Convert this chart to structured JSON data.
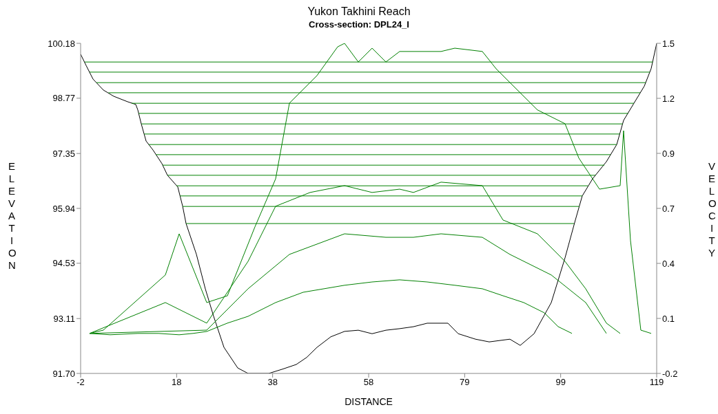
{
  "chart_data": {
    "type": "line",
    "title": "Yukon Takhini Reach",
    "subtitle": "Cross-section: DPL24_I",
    "xlabel": "DISTANCE",
    "ylabel": "ELEVATION",
    "y2label": "VELOCITY",
    "xlim": [
      -2,
      119
    ],
    "xticks": [
      -2,
      {
        "value": 18.17,
        "label": "18"
      },
      {
        "value": 38.33,
        "label": "38"
      },
      {
        "value": 58.5,
        "label": "58"
      },
      {
        "value": 78.67,
        "label": "79"
      },
      {
        "value": 98.83,
        "label": "99"
      },
      119
    ],
    "ylim": [
      91.7,
      100.18
    ],
    "yticks": [
      {
        "value": 91.7,
        "label": "91.70"
      },
      93.11,
      94.53,
      95.94,
      97.35,
      98.77,
      100.18
    ],
    "y2lim": [
      -0.2,
      1.5
    ],
    "y2ticks": [
      -0.2,
      {
        "value": 0.0833,
        "label": "0.1"
      },
      {
        "value": 0.3667,
        "label": "0.4"
      },
      {
        "value": 0.65,
        "label": "0.7"
      },
      {
        "value": 0.9333,
        "label": "0.9"
      },
      {
        "value": 1.2167,
        "label": "1.2"
      },
      1.5
    ],
    "marker": "none",
    "line_style": "solid",
    "series": [
      {
        "color": "#000000",
        "x": [
          -2,
          -0.84,
          0.61,
          2.78,
          4.95,
          7.85,
          9.58,
          10.01,
          10.74,
          11.75,
          13.2,
          15.08,
          16.24,
          18.41,
          19.42,
          20.15,
          22.32,
          24.2,
          25.93,
          28.11,
          31.0,
          33.17,
          37.51,
          40.41,
          43.3,
          45.47,
          47.65,
          50.54,
          53.44,
          56.33,
          59.22,
          62.12,
          65.01,
          67.91,
          70.8,
          75.15,
          77.32,
          80.94,
          83.83,
          88.17,
          90.34,
          93.24,
          96.86,
          99.75,
          101.92,
          103.37,
          105.54,
          108.44,
          110.61,
          112.05,
          114.22,
          116.4,
          117.84,
          119
        ],
        "values": [
          99.9,
          99.61,
          99.26,
          98.98,
          98.82,
          98.68,
          98.61,
          98.47,
          98.11,
          97.67,
          97.44,
          97.09,
          96.79,
          96.49,
          96.0,
          95.55,
          94.76,
          93.87,
          93.17,
          92.37,
          91.84,
          91.7,
          91.7,
          91.81,
          91.93,
          92.11,
          92.37,
          92.64,
          92.78,
          92.81,
          92.72,
          92.81,
          92.85,
          92.9,
          92.99,
          92.99,
          92.72,
          92.58,
          92.51,
          92.58,
          92.42,
          92.72,
          93.52,
          94.67,
          95.64,
          96.26,
          96.7,
          97.14,
          97.58,
          98.2,
          98.64,
          99.08,
          99.53,
          100.18
        ]
      },
      {
        "type": "line",
        "color": "#008000",
        "x": [
          -1.13,
          118.2
        ],
        "values": [
          99.7,
          99.7
        ]
      },
      {
        "type": "line",
        "color": "#008000",
        "x": [
          -0.12,
          117.55
        ],
        "values": [
          99.44,
          99.44
        ]
      },
      {
        "type": "line",
        "color": "#008000",
        "x": [
          1.33,
          116.69
        ],
        "values": [
          99.17,
          99.17
        ]
      },
      {
        "type": "line",
        "color": "#008000",
        "x": [
          3.86,
          115.53
        ],
        "values": [
          98.91,
          98.91
        ]
      },
      {
        "type": "line",
        "color": "#008000",
        "x": [
          8.71,
          114.22
        ],
        "values": [
          98.64,
          98.64
        ]
      },
      {
        "type": "line",
        "color": "#008000",
        "x": [
          10.16,
          113.0
        ],
        "values": [
          98.38,
          98.38
        ]
      },
      {
        "type": "line",
        "color": "#008000",
        "x": [
          10.74,
          111.85
        ],
        "values": [
          98.11,
          98.11
        ]
      },
      {
        "type": "line",
        "color": "#008000",
        "x": [
          11.34,
          111.23
        ],
        "values": [
          97.85,
          97.85
        ]
      },
      {
        "type": "line",
        "color": "#008000",
        "x": [
          12.3,
          110.61
        ],
        "values": [
          97.58,
          97.58
        ]
      },
      {
        "type": "line",
        "color": "#008000",
        "x": [
          13.83,
          109.31
        ],
        "values": [
          97.32,
          97.32
        ]
      },
      {
        "type": "line",
        "color": "#008000",
        "x": [
          15.22,
          108.0
        ],
        "values": [
          97.05,
          97.05
        ]
      },
      {
        "type": "line",
        "color": "#008000",
        "x": [
          16.24,
          106.12
        ],
        "values": [
          96.79,
          96.79
        ]
      },
      {
        "type": "line",
        "color": "#008000",
        "x": [
          18.12,
          104.57
        ],
        "values": [
          96.52,
          96.52
        ]
      },
      {
        "type": "line",
        "color": "#008000",
        "x": [
          18.87,
          103.37
        ],
        "values": [
          96.26,
          96.26
        ]
      },
      {
        "type": "line",
        "color": "#008000",
        "x": [
          19.42,
          102.75
        ],
        "values": [
          95.99,
          95.99
        ]
      },
      {
        "type": "line",
        "color": "#008000",
        "x": [
          20.15,
          101.63
        ],
        "values": [
          95.55,
          95.55
        ]
      },
      {
        "type": "line",
        "color": "#008000",
        "axis": "y2",
        "x": [
          -0.12,
          4.22,
          10.01,
          14.36,
          18.7,
          21.59,
          24.49,
          28.83,
          33.17,
          38.96,
          44.75,
          49.1,
          53.44,
          59.22,
          65.01,
          70.8,
          76.59,
          82.38,
          86.72,
          91.07,
          95.41,
          98.3,
          101.2
        ],
        "values": [
          0.006,
          -0.001,
          0.006,
          0.006,
          -0.001,
          0.006,
          0.016,
          0.059,
          0.094,
          0.165,
          0.218,
          0.236,
          0.254,
          0.271,
          0.282,
          0.271,
          0.254,
          0.236,
          0.2,
          0.165,
          0.112,
          0.041,
          0.006
        ]
      },
      {
        "type": "line",
        "color": "#008000",
        "axis": "y2",
        "x": [
          -0.12,
          24.49,
          33.17,
          41.86,
          53.44,
          62.12,
          67.91,
          73.7,
          82.38,
          88.17,
          96.86,
          104.09,
          108.44
        ],
        "values": [
          0.006,
          0.023,
          0.236,
          0.413,
          0.519,
          0.501,
          0.501,
          0.519,
          0.501,
          0.413,
          0.307,
          0.165,
          0.006
        ]
      },
      {
        "type": "line",
        "color": "#008000",
        "axis": "y2",
        "x": [
          -0.12,
          15.8,
          24.49,
          33.17,
          38.96,
          46.2,
          53.44,
          59.22,
          65.01,
          67.91,
          73.7,
          82.38,
          86.72,
          93.96,
          99.75,
          104.09,
          108.44,
          111.33
        ],
        "values": [
          0.006,
          0.165,
          0.059,
          0.377,
          0.661,
          0.732,
          0.767,
          0.732,
          0.749,
          0.732,
          0.785,
          0.767,
          0.59,
          0.519,
          0.377,
          0.236,
          0.059,
          0.006
        ]
      },
      {
        "type": "line",
        "color": "#008000",
        "axis": "y2",
        "x": [
          -0.12,
          2.78,
          15.8,
          18.7,
          24.49,
          28.83,
          34.62,
          38.96,
          41.86,
          47.65,
          51.99,
          53.44,
          56.33,
          59.22,
          62.12,
          65.01,
          67.91,
          73.7,
          76.59,
          82.38,
          85.28,
          88.17,
          93.96,
          99.75,
          102.65,
          106.99,
          111.33,
          112.05,
          113.5,
          115.67,
          117.84
        ],
        "values": [
          0.006,
          0.023,
          0.307,
          0.519,
          0.165,
          0.2,
          0.555,
          0.802,
          1.192,
          1.334,
          1.482,
          1.5,
          1.404,
          1.475,
          1.404,
          1.458,
          1.458,
          1.458,
          1.475,
          1.458,
          1.369,
          1.298,
          1.157,
          1.086,
          0.909,
          0.749,
          0.767,
          1.05,
          0.484,
          0.023,
          0.006
        ]
      }
    ]
  }
}
